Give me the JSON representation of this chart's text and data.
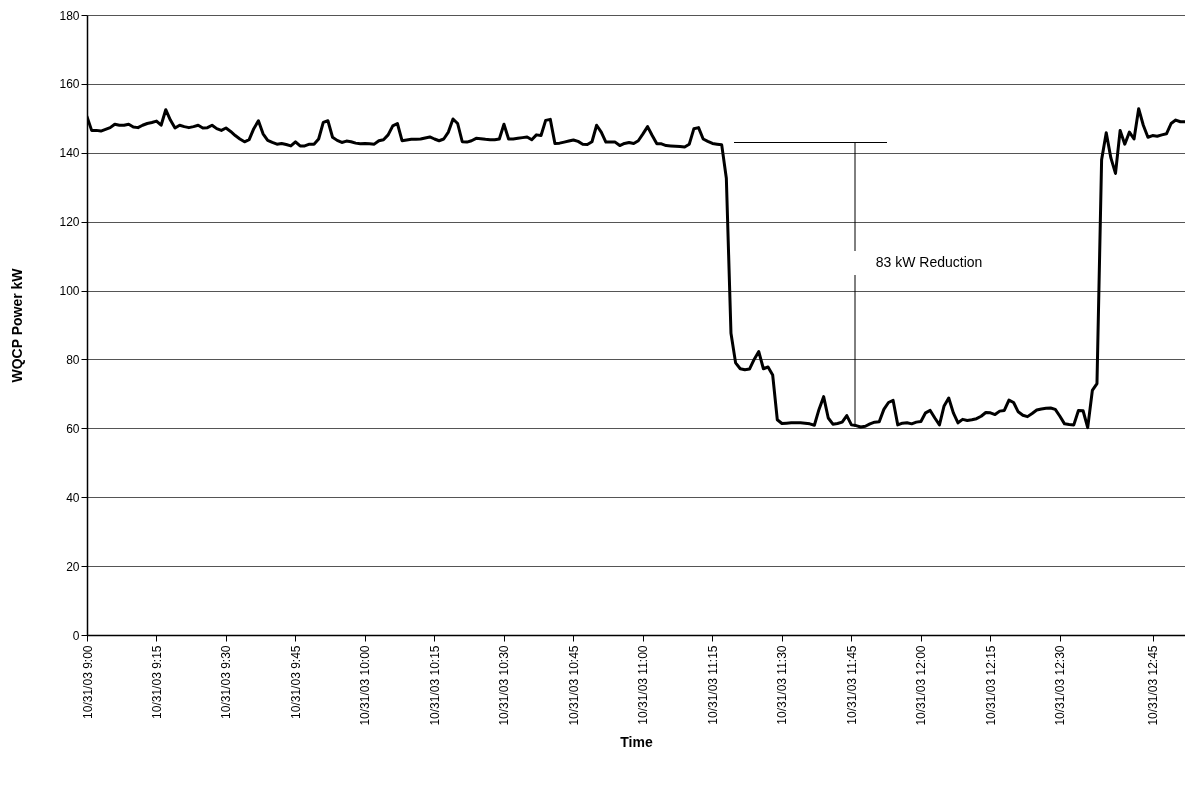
{
  "chart_data": {
    "type": "line",
    "xlabel": "Time",
    "ylabel": "WQCP Power kW",
    "categories": [
      "10/31/03 9:00",
      null,
      null,
      null,
      null,
      null,
      null,
      null,
      null,
      null,
      null,
      null,
      null,
      null,
      null,
      "10/31/03 9:15",
      null,
      null,
      null,
      null,
      null,
      null,
      null,
      null,
      null,
      null,
      null,
      null,
      null,
      null,
      "10/31/03 9:30",
      null,
      null,
      null,
      null,
      null,
      null,
      null,
      null,
      null,
      null,
      null,
      null,
      null,
      null,
      "10/31/03 9:45",
      null,
      null,
      null,
      null,
      null,
      null,
      null,
      null,
      null,
      null,
      null,
      null,
      null,
      null,
      "10/31/03 10:00",
      null,
      null,
      null,
      null,
      null,
      null,
      null,
      null,
      null,
      null,
      null,
      null,
      null,
      null,
      "10/31/03 10:15",
      null,
      null,
      null,
      null,
      null,
      null,
      null,
      null,
      null,
      null,
      null,
      null,
      null,
      null,
      "10/31/03 10:30",
      null,
      null,
      null,
      null,
      null,
      null,
      null,
      null,
      null,
      null,
      null,
      null,
      null,
      null,
      "10/31/03 10:45",
      null,
      null,
      null,
      null,
      null,
      null,
      null,
      null,
      null,
      null,
      null,
      null,
      null,
      null,
      "10/31/03 11:00",
      null,
      null,
      null,
      null,
      null,
      null,
      null,
      null,
      null,
      null,
      null,
      null,
      null,
      null,
      "10/31/03 11:15",
      null,
      null,
      null,
      null,
      null,
      null,
      null,
      null,
      null,
      null,
      null,
      null,
      null,
      null,
      "10/31/03 11:30",
      null,
      null,
      null,
      null,
      null,
      null,
      null,
      null,
      null,
      null,
      null,
      null,
      null,
      null,
      "10/31/03 11:45",
      null,
      null,
      null,
      null,
      null,
      null,
      null,
      null,
      null,
      null,
      null,
      null,
      null,
      null,
      "10/31/03 12:00",
      null,
      null,
      null,
      null,
      null,
      null,
      null,
      null,
      null,
      null,
      null,
      null,
      null,
      null,
      "10/31/03 12:15",
      null,
      null,
      null,
      null,
      null,
      null,
      null,
      null,
      null,
      null,
      null,
      null,
      null,
      null,
      "10/31/03 12:30",
      null,
      null,
      null,
      null,
      null,
      null,
      null,
      null,
      null,
      null,
      null,
      null,
      null,
      null,
      null,
      null,
      null,
      null,
      null,
      "10/31/03 12:45",
      null,
      null,
      null,
      null,
      null,
      null,
      null
    ],
    "values": [
      150.5,
      146.5,
      146.5,
      146.3,
      146.8,
      147.3,
      148.3,
      148,
      148,
      148.3,
      147.5,
      147.3,
      148,
      148.5,
      148.8,
      149.2,
      148,
      152.5,
      149.5,
      147.2,
      148,
      147.6,
      147.3,
      147.6,
      148,
      147.2,
      147.3,
      148,
      147,
      146.5,
      147.2,
      146.2,
      145,
      144,
      143.2,
      143.8,
      147,
      149.3,
      145.5,
      143.6,
      143,
      142.5,
      142.7,
      142.4,
      142,
      143.2,
      142,
      142,
      142.5,
      142.5,
      144,
      148.8,
      149.3,
      144.5,
      143.6,
      143,
      143.4,
      143.2,
      142.8,
      142.6,
      142.7,
      142.6,
      142.5,
      143.5,
      143.8,
      145.2,
      147.8,
      148.5,
      143.5,
      143.7,
      143.9,
      143.9,
      144,
      144.3,
      144.6,
      144,
      143.5,
      144,
      146,
      149.8,
      148.5,
      143.2,
      143.1,
      143.5,
      144.2,
      144.1,
      143.9,
      143.8,
      143.8,
      144,
      148.3,
      144,
      144,
      144.2,
      144.4,
      144.6,
      143.8,
      145.2,
      145,
      149.4,
      149.7,
      142.7,
      142.8,
      143.1,
      143.4,
      143.7,
      143.3,
      142.5,
      142.4,
      143.2,
      148,
      146,
      143.1,
      143.1,
      143.1,
      142.1,
      142.7,
      143,
      142.7,
      143.5,
      145.5,
      147.6,
      145,
      142.6,
      142.6,
      142.1,
      142,
      141.9,
      141.8,
      141.7,
      142.5,
      147,
      147.3,
      144,
      143.3,
      142.7,
      142.5,
      142.3,
      132.6,
      87.6,
      79,
      77.3,
      77,
      77.2,
      80,
      82.3,
      77.3,
      77.8,
      75.5,
      62.5,
      61.4,
      61.5,
      61.6,
      61.6,
      61.6,
      61.5,
      61.3,
      60.9,
      65.5,
      69.2,
      63,
      61.2,
      61.4,
      61.8,
      63.7,
      61,
      60.8,
      60.4,
      60.6,
      61.3,
      61.8,
      61.9,
      65.5,
      67.5,
      68.1,
      61,
      61.5,
      61.6,
      61.3,
      61.8,
      62,
      64.5,
      65.2,
      63,
      61,
      66.5,
      68.8,
      64.5,
      61.6,
      62.6,
      62.3,
      62.5,
      62.8,
      63.5,
      64.6,
      64.5,
      64,
      65,
      65.2,
      68.2,
      67.5,
      64.8,
      63.8,
      63.4,
      64.3,
      65.3,
      65.6,
      65.8,
      65.9,
      65.5,
      63.5,
      61.3,
      61.1,
      61,
      65.2,
      65.1,
      60.2,
      71,
      73,
      138,
      145.8,
      138.5,
      134,
      146.5,
      142.5,
      146,
      144,
      152.8,
      148,
      144.5,
      145,
      144.8,
      145.2,
      145.5,
      148.5,
      149.5,
      149,
      149
    ],
    "color": "#000000",
    "ylim": [
      0,
      180
    ],
    "yticks": [
      0,
      20,
      40,
      60,
      80,
      100,
      120,
      140,
      160,
      180
    ],
    "grid": "y",
    "annotations": [
      "83 kW Reduction"
    ]
  }
}
